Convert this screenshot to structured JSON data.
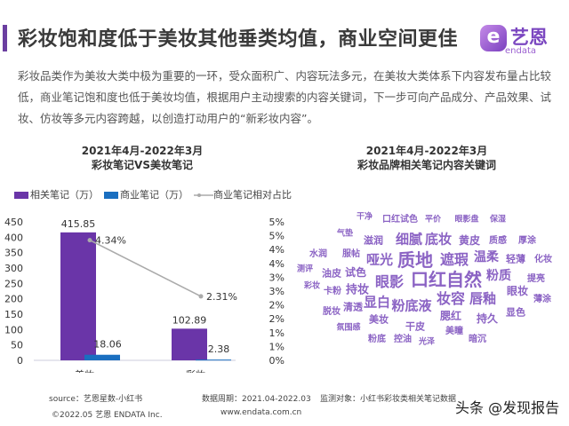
{
  "header": {
    "title": "彩妆饱和度低于美妆其他垂类均值，商业空间更佳",
    "logo_cn": "艺恩",
    "logo_en": "endata",
    "logo_mark": "e"
  },
  "intro": "彩妆品类作为美妆大类中极为重要的一环，受众面积广、内容玩法多元，在美妆大类体系下内容发布量占比较低，商业笔记饱和度也低于美妆均值，根据用户主动搜索的内容关键词，下一步可向产品成分、产品效果、试妆、仿妆等多元内容跨越，以创造打动用户的“新彩妆内容”。",
  "chart_data": {
    "type": "bar",
    "title": [
      "2021年4月-2022年3月",
      "彩妆笔记VS美妆笔记"
    ],
    "categories": [
      "美妆",
      "彩妆"
    ],
    "series": [
      {
        "name": "相关笔记（万）",
        "type": "bar",
        "axis": "left",
        "color": "#6a35a8",
        "values": [
          415.85,
          102.89
        ]
      },
      {
        "name": "商业笔记（万）",
        "type": "bar",
        "axis": "left",
        "color": "#1a6fc0",
        "values": [
          18.06,
          2.38
        ]
      },
      {
        "name": "商业笔记相对占比",
        "type": "line",
        "axis": "right",
        "color": "#aaaaaa",
        "values": [
          4.34,
          2.31
        ],
        "labels": [
          "4.34%",
          "2.31%"
        ]
      }
    ],
    "left_axis": {
      "range": [
        0,
        450
      ],
      "ticks": [
        "0",
        "50",
        "100",
        "150",
        "200",
        "250",
        "300",
        "350",
        "400",
        "450"
      ]
    },
    "right_axis": {
      "range": [
        0,
        5
      ],
      "ticks": [
        "0%",
        "1%",
        "1%",
        "2%",
        "2%",
        "3%",
        "3%",
        "4%",
        "4%",
        "5%",
        "5%"
      ]
    },
    "legend": "top"
  },
  "wordcloud": {
    "title": [
      "2021年4月-2022年3月",
      "彩妆品牌相关笔记内容关键词"
    ],
    "color": "#8b63c4",
    "words": [
      "干净",
      "口红试色",
      "平价",
      "眼影盘",
      "保湿",
      "气垫",
      "滋润",
      "细腻",
      "底妆",
      "黄皮",
      "质感",
      "厚涂",
      "水润",
      "服帖",
      "哑光",
      "质地",
      "遮瑕",
      "温柔",
      "轻薄",
      "化妆",
      "测评",
      "油皮",
      "试色",
      "眼影",
      "口红自然",
      "粉质",
      "提亮",
      "彩妆",
      "卡粉",
      "持妆",
      "眼妆",
      "清透",
      "显白",
      "粉底液",
      "妆容",
      "唇釉",
      "薄涂",
      "脱妆",
      "美妆",
      "腮红",
      "持久",
      "显色",
      "氛围感",
      "干皮",
      "美瞳",
      "粉底",
      "控油",
      "光泽",
      "暗沉"
    ]
  },
  "footer": {
    "source": "source：艺恩星数-小红书",
    "period": "数据周期：2021.04-2022.03",
    "target": "监测对象：小红书彩妆类相关笔记数据",
    "copyright": "©2022.05 艺恩 ENDATA Inc.",
    "website": "www.endata.com.cn"
  },
  "watermark": "头条 @发现报告"
}
